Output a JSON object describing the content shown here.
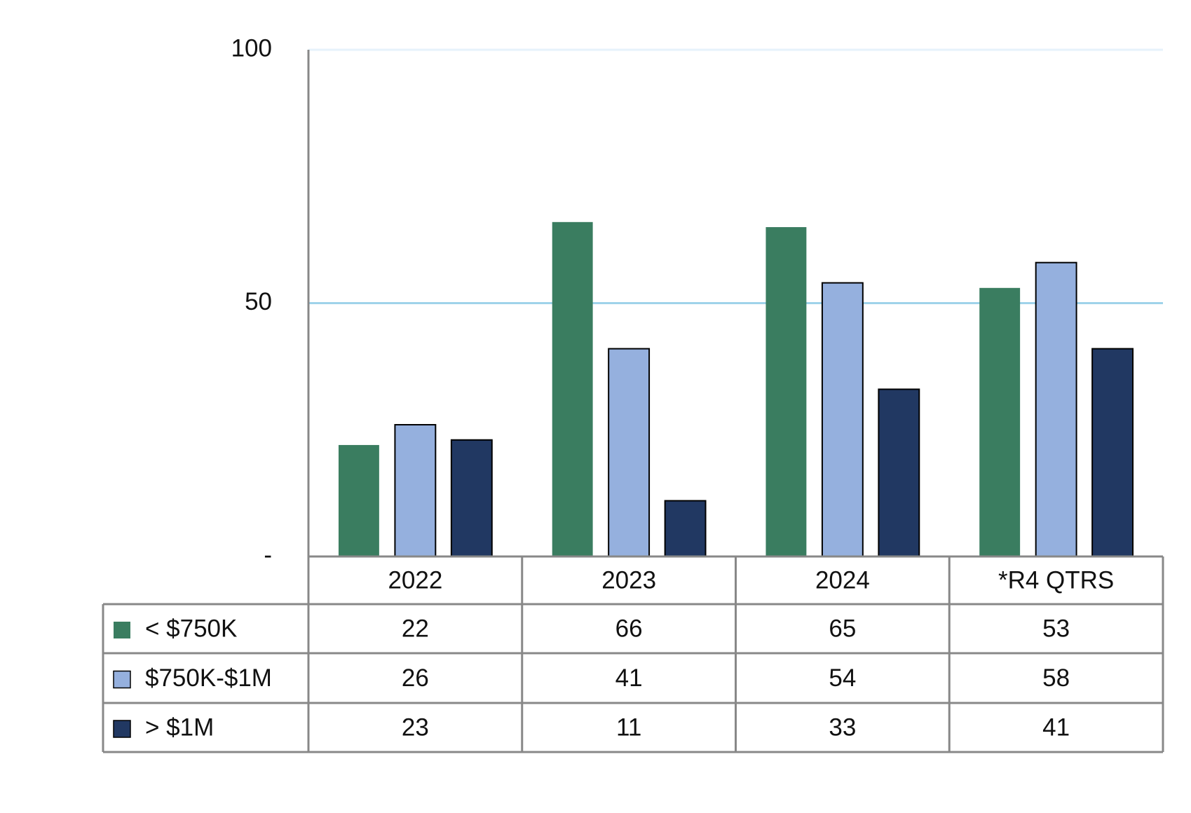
{
  "chart_data": {
    "type": "bar",
    "categories": [
      "2022",
      "2023",
      "2024",
      "*R4 QTRS"
    ],
    "series": [
      {
        "name": "< $750K",
        "color": "#3a7d60",
        "values": [
          22,
          66,
          65,
          53
        ]
      },
      {
        "name": "$750K-$1M",
        "color": "#95b0de",
        "values": [
          26,
          41,
          54,
          58
        ]
      },
      {
        "name": "> $1M",
        "color": "#213862",
        "values": [
          23,
          11,
          33,
          41
        ]
      }
    ],
    "ylim": [
      0,
      100
    ],
    "yticks": [
      {
        "value": 0,
        "label": "-"
      },
      50,
      100
    ],
    "grid": true,
    "data_table": true
  }
}
